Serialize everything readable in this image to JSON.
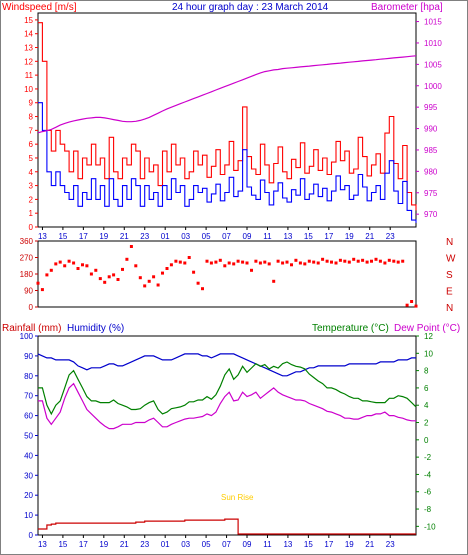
{
  "header": {
    "wind_label": "Windspeed [m/s]",
    "title": "24 hour graph day : 23 March 2014",
    "baro_label": "Barometer [hpa]",
    "rain_label": "Rainfall (mm)",
    "humidity_label": "Humidity (%)",
    "temp_label": "Temperature (°C)",
    "dew_label": "Dew Point (°C)",
    "sunrise_label": "Sun Rise"
  },
  "colors": {
    "gust": "#ff0000",
    "avg": "#0000ff",
    "baro": "#cc00cc",
    "dir": "#ff0000",
    "rain": "#cc0000",
    "humidity": "#0000cc",
    "temp": "#008000",
    "dew": "#cc00cc",
    "rain_axis": "#0000cc",
    "temp_axis": "#008000",
    "wind_axis": "#ff0000",
    "baro_axis": "#cc00cc",
    "dir_axis": "#cc0000",
    "sunrise": "#ffcc00"
  },
  "x_labels": [
    "13",
    "15",
    "17",
    "19",
    "21",
    "23",
    "01",
    "03",
    "05",
    "07",
    "09",
    "11",
    "13",
    "15",
    "17",
    "19",
    "21",
    "23"
  ],
  "wind_ticks": [
    "0",
    "1",
    "2",
    "3",
    "4",
    "5",
    "6",
    "7",
    "8",
    "9",
    "10",
    "11",
    "12",
    "13",
    "14",
    "15"
  ],
  "baro_ticks": [
    "970",
    "975",
    "980",
    "985",
    "990",
    "995",
    "1000",
    "1005",
    "1010",
    "1015"
  ],
  "dir_ticks": [
    "360",
    "270",
    "180",
    "90",
    "0"
  ],
  "dir_letters": [
    "N",
    "W",
    "S",
    "E",
    "N"
  ],
  "rain_ticks": [
    "0",
    "10",
    "20",
    "30",
    "40",
    "50",
    "60",
    "70",
    "80",
    "90",
    "100"
  ],
  "temp_ticks": [
    "-10",
    "-8",
    "-6",
    "-4",
    "-2",
    "0",
    "2",
    "4",
    "6",
    "8",
    "10",
    "12"
  ],
  "chart_data": [
    {
      "type": "line",
      "title": "24 hour graph day : 23 March 2014",
      "ylabel": "Windspeed [m/s]",
      "y2label": "Barometer [hpa]",
      "ylim": [
        0,
        15.5
      ],
      "y2lim": [
        967,
        1017
      ],
      "x_hours": [
        12,
        13,
        14,
        15,
        16,
        17,
        18,
        19,
        20,
        21,
        22,
        23,
        24,
        25,
        26,
        27,
        28,
        29,
        30,
        31,
        32,
        33,
        34,
        35,
        36,
        37,
        38,
        39,
        40,
        41,
        42,
        43,
        44,
        45,
        46,
        47,
        48,
        49,
        50,
        51,
        52,
        53,
        54,
        55,
        56,
        57,
        58,
        59,
        60,
        61,
        62,
        63,
        64,
        65,
        66,
        67,
        68,
        69,
        70,
        71,
        72,
        73,
        74,
        75,
        76,
        77,
        78,
        79,
        80,
        81,
        82,
        83,
        84,
        85,
        86,
        87,
        88,
        89,
        90,
        91,
        92,
        93,
        94,
        95,
        96,
        97
      ],
      "series": [
        {
          "name": "Windspeed",
          "role": "gust",
          "values": [
            14.8,
            12,
            7,
            5.5,
            7,
            6,
            5.5,
            4,
            5.5,
            3.5,
            5,
            4.5,
            6,
            4.5,
            5,
            3.5,
            6.5,
            4,
            3.5,
            5,
            4.5,
            6,
            5.5,
            3.5,
            5,
            4,
            4.5,
            3,
            5.5,
            4,
            6,
            4.5,
            5,
            3.5,
            4,
            5.5,
            4.5,
            5.2,
            3.6,
            4.4,
            5.6,
            3.8,
            4.5,
            6.2,
            4.1,
            4.8,
            8.7,
            5.1,
            4.2,
            3.8,
            6,
            4.5,
            3.2,
            4.6,
            5.8,
            4,
            3.5,
            4.9,
            4.3,
            6.1,
            3.9,
            4.4,
            5.6,
            4.1,
            5,
            3.8,
            4.7,
            6.2,
            4.8,
            5.5,
            3.9,
            4.2,
            6.5,
            5.1,
            3.7,
            4.5,
            5.3,
            3.9,
            6.8,
            8,
            4.6,
            3.5,
            5.9,
            2.5,
            1.6,
            1.2
          ]
        },
        {
          "name": "Windspeed",
          "role": "average",
          "values": [
            9,
            7,
            4,
            3,
            4,
            3,
            2.5,
            2,
            3,
            1.5,
            2.5,
            2,
            3.5,
            2,
            3,
            1.5,
            3.5,
            2,
            1.5,
            3,
            2,
            3.5,
            3,
            1.5,
            3,
            2,
            2.5,
            1.5,
            3,
            2,
            3.5,
            2.5,
            3,
            1.5,
            2,
            3,
            2.5,
            2.8,
            1.8,
            2.4,
            3.1,
            1.9,
            2.5,
            3.6,
            2.2,
            2.6,
            5.6,
            2.9,
            2.3,
            2,
            3.4,
            2.5,
            1.6,
            2.6,
            3.2,
            2.1,
            1.8,
            2.7,
            2.3,
            3.5,
            2,
            2.4,
            3.1,
            2.2,
            2.8,
            1.9,
            2.6,
            3.7,
            2.7,
            3,
            2,
            2.3,
            3.8,
            2.9,
            1.9,
            2.5,
            3,
            2,
            3.9,
            4.8,
            2.6,
            1.7,
            3.3,
            1.2,
            0.5,
            0.3
          ]
        },
        {
          "name": "Barometer",
          "role": "barometer",
          "values": [
            989,
            989.3,
            989.5,
            989.8,
            990.3,
            990.8,
            991.2,
            991.5,
            991.8,
            992,
            992.2,
            992.4,
            992.5,
            992.6,
            992.6,
            992.5,
            992.3,
            992.1,
            991.9,
            991.7,
            991.6,
            991.6,
            991.7,
            991.9,
            992.2,
            992.6,
            993.1,
            993.6,
            994.1,
            994.6,
            995,
            995.4,
            995.8,
            996.2,
            996.6,
            997,
            997.4,
            997.8,
            998.2,
            998.6,
            999,
            999.4,
            999.8,
            1000.2,
            1000.6,
            1001,
            1001.4,
            1001.8,
            1002.2,
            1002.6,
            1003,
            1003.3,
            1003.5,
            1003.7,
            1003.8,
            1004,
            1004.1,
            1004.2,
            1004.3,
            1004.4,
            1004.5,
            1004.6,
            1004.7,
            1004.8,
            1004.9,
            1005,
            1005.1,
            1005.2,
            1005.3,
            1005.4,
            1005.5,
            1005.6,
            1005.7,
            1005.8,
            1005.9,
            1006,
            1006.1,
            1006.2,
            1006.3,
            1006.4,
            1006.5,
            1006.6,
            1006.7,
            1006.8,
            1006.9,
            1007
          ]
        }
      ]
    },
    {
      "type": "scatter",
      "ylabel": "Wind direction",
      "ylim": [
        0,
        360
      ],
      "x_hours": [
        12,
        13,
        14,
        15,
        16,
        17,
        18,
        19,
        20,
        21,
        22,
        23,
        24,
        25,
        26,
        27,
        28,
        29,
        30,
        31,
        32,
        33,
        34,
        35,
        36,
        37,
        38,
        39,
        40,
        41,
        42,
        43,
        44,
        45,
        46,
        47,
        48,
        49,
        50,
        51,
        52,
        53,
        54,
        55,
        56,
        57,
        58,
        59,
        60,
        61,
        62,
        63,
        64,
        65,
        66,
        67,
        68,
        69,
        70,
        71,
        72,
        73,
        74,
        75,
        76,
        77,
        78,
        79,
        80,
        81,
        82,
        83,
        84,
        85,
        86,
        87,
        88,
        89,
        90,
        91,
        92,
        93,
        94,
        95,
        96,
        97
      ],
      "series": [
        {
          "name": "Direction",
          "values": [
            130,
            95,
            175,
            200,
            235,
            245,
            225,
            250,
            240,
            210,
            230,
            225,
            180,
            200,
            155,
            135,
            165,
            175,
            150,
            205,
            260,
            330,
            225,
            160,
            115,
            140,
            165,
            120,
            185,
            210,
            230,
            250,
            245,
            240,
            270,
            190,
            130,
            100,
            250,
            240,
            245,
            255,
            225,
            240,
            235,
            250,
            245,
            240,
            200,
            250,
            240,
            245,
            235,
            140,
            250,
            240,
            245,
            230,
            255,
            240,
            235,
            250,
            245,
            240,
            260,
            250,
            245,
            240,
            255,
            250,
            245,
            260,
            250,
            255,
            245,
            250,
            260,
            250,
            240,
            255,
            250,
            245,
            250,
            10,
            30,
            5
          ]
        }
      ]
    },
    {
      "type": "line",
      "ylabel": "Rainfall (mm)  Humidity (%)",
      "y2label": "Temperature (°C)  Dew Point (°C)",
      "ylim": [
        0,
        100
      ],
      "y2lim": [
        -11,
        12
      ],
      "x_hours": [
        12,
        13,
        14,
        15,
        16,
        17,
        18,
        19,
        20,
        21,
        22,
        23,
        24,
        25,
        26,
        27,
        28,
        29,
        30,
        31,
        32,
        33,
        34,
        35,
        36,
        37,
        38,
        39,
        40,
        41,
        42,
        43,
        44,
        45,
        46,
        47,
        48,
        49,
        50,
        51,
        52,
        53,
        54,
        55,
        56,
        57,
        58,
        59,
        60,
        61,
        62,
        63,
        64,
        65,
        66,
        67,
        68,
        69,
        70,
        71,
        72,
        73,
        74,
        75,
        76,
        77,
        78,
        79,
        80,
        81,
        82,
        83,
        84,
        85,
        86,
        87,
        88,
        89,
        90,
        91,
        92,
        93,
        94,
        95,
        96,
        97
      ],
      "series": [
        {
          "name": "Rainfall",
          "role": "rain",
          "values": [
            3,
            3,
            5,
            5.5,
            6,
            6,
            6,
            6,
            6,
            6,
            6,
            6,
            6,
            6,
            6,
            6,
            6,
            6,
            6,
            6,
            6,
            6,
            6.5,
            6.5,
            7,
            7,
            7,
            7,
            7,
            7,
            7,
            7,
            7,
            7.5,
            7.5,
            7.5,
            7.5,
            7.5,
            7.5,
            7.5,
            7.5,
            7.5,
            8,
            8,
            8,
            0.5,
            0.5,
            0.5,
            0.5,
            0.5,
            0.5,
            0.5,
            0.5,
            0.5,
            0.5,
            0.5,
            0.5,
            0.5,
            0.5,
            0.5,
            0.5,
            0.5,
            0.5,
            0.5,
            0.5,
            0.5,
            0.5,
            0.5,
            0.5,
            0.5,
            0.5,
            0.5,
            0.5,
            0.5,
            0.5,
            0.5,
            0.5,
            0.5,
            0.5,
            0.5,
            0.5,
            0.5,
            0.5,
            0.5,
            0.5,
            0.5
          ]
        },
        {
          "name": "Humidity",
          "role": "humidity",
          "values": [
            91,
            90,
            89,
            89,
            88,
            88,
            88,
            88,
            87,
            85,
            84,
            83,
            84,
            84,
            84,
            85,
            86,
            86,
            85,
            85,
            86,
            87,
            88,
            89,
            90,
            90,
            90,
            89,
            88,
            88,
            88,
            89,
            90,
            91,
            91,
            91,
            91,
            90,
            90,
            89,
            90,
            91,
            91,
            91,
            91,
            90,
            89,
            88,
            87,
            86,
            85,
            84,
            83,
            82,
            81,
            80,
            80,
            81,
            82,
            82,
            83,
            84,
            84,
            85,
            85,
            85,
            85,
            85,
            85,
            85,
            86,
            86,
            86,
            86,
            86,
            86,
            86,
            87,
            87,
            87,
            87,
            88,
            88,
            88,
            89,
            89
          ]
        },
        {
          "name": "Temperature",
          "role": "temperature",
          "values": [
            6,
            6,
            4,
            3,
            4,
            4.5,
            6,
            7.5,
            8,
            7,
            6,
            5,
            4.5,
            4.5,
            4.3,
            4.3,
            4.3,
            4.6,
            4.2,
            4,
            3.8,
            3.5,
            3.5,
            3.6,
            4,
            4.3,
            4.5,
            3.5,
            3,
            3.2,
            3.6,
            3.7,
            3.8,
            4,
            4.4,
            4.4,
            4.6,
            4.6,
            5,
            4.7,
            5.2,
            6.2,
            7.5,
            8.2,
            7,
            7.5,
            8.5,
            7.8,
            8.3,
            8.8,
            8.5,
            8.7,
            8.2,
            8.5,
            8.3,
            8.8,
            9,
            8.7,
            8.5,
            8.4,
            8.2,
            7.6,
            7.2,
            6.8,
            6.5,
            6,
            6,
            5.8,
            5.5,
            5.3,
            5,
            4.8,
            4.8,
            4.5,
            4.5,
            4.4,
            4.3,
            4.3,
            4.3,
            4.8,
            4.8,
            5.1,
            5,
            4.8,
            4.3,
            3.8
          ]
        },
        {
          "name": "Dew Point",
          "role": "dewpoint",
          "values": [
            4.5,
            4.5,
            2.5,
            1.8,
            2.5,
            3.2,
            4.8,
            6,
            6.5,
            5.5,
            4.5,
            3.5,
            3,
            2.5,
            2,
            1.6,
            1.3,
            1.3,
            1.5,
            1.8,
            1.8,
            1.8,
            2,
            2,
            2,
            2.3,
            2.5,
            2,
            1.5,
            1.5,
            1.8,
            2,
            2.2,
            2.4,
            2.5,
            2.5,
            2.6,
            2.7,
            3,
            2.8,
            3.2,
            4.2,
            5,
            5.5,
            4.5,
            4.6,
            5.5,
            5,
            5.2,
            5.5,
            4.8,
            5.2,
            5.6,
            6,
            5.5,
            5.2,
            5,
            4.8,
            4.6,
            4.6,
            4.5,
            4.2,
            4,
            3.8,
            3.6,
            3.3,
            3.2,
            3,
            2.8,
            2.5,
            2.5,
            2.4,
            2.4,
            2.6,
            2.8,
            2.8,
            3,
            3,
            3.2,
            2.8,
            2.8,
            2.6,
            2.5,
            2.3,
            2.2,
            2.2
          ]
        }
      ]
    }
  ]
}
